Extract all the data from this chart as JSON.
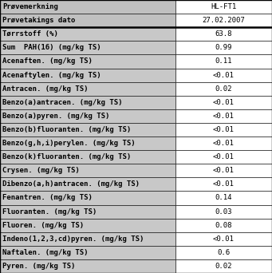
{
  "header_labels": [
    "Prøvemerkning",
    "Prøvetakings dato"
  ],
  "header_values": [
    "HL-FT1",
    "27.02.2007"
  ],
  "rows": [
    [
      "Tørrstoff (%)",
      "63.8"
    ],
    [
      "Sum  PAH(16) (mg/kg TS)",
      "0.99"
    ],
    [
      "Acenaften. (mg/kg TS)",
      "0.11"
    ],
    [
      "Acenaftylen. (mg/kg TS)",
      "<0.01"
    ],
    [
      "Antracen. (mg/kg TS)",
      "0.02"
    ],
    [
      "Benzo(a)antracen. (mg/kg TS)",
      "<0.01"
    ],
    [
      "Benzo(a)pyren. (mg/kg TS)",
      "<0.01"
    ],
    [
      "Benzo(b)fluoranten. (mg/kg TS)",
      "<0.01"
    ],
    [
      "Benzo(g,h,i)perylen. (mg/kg TS)",
      "<0.01"
    ],
    [
      "Benzo(k)fluoranten. (mg/kg TS)",
      "<0.01"
    ],
    [
      "Crysen. (mg/kg TS)",
      "<0.01"
    ],
    [
      "Dibenzo(a,h)antracen. (mg/kg TS)",
      "<0.01"
    ],
    [
      "Fenantren. (mg/kg TS)",
      "0.14"
    ],
    [
      "Fluoranten. (mg/kg TS)",
      "0.03"
    ],
    [
      "Fluoren. (mg/kg TS)",
      "0.08"
    ],
    [
      "Indeno(1,2,3,cd)pyren. (mg/kg TS)",
      "<0.01"
    ],
    [
      "Naftalen. (mg/kg TS)",
      "0.6"
    ],
    [
      "Pyren. (mg/kg TS)",
      "0.02"
    ]
  ],
  "header_bg": "#c0c0c0",
  "row_bg": "#c8c8c8",
  "value_bg": "#ffffff",
  "border_color": "#000000",
  "text_color": "#000000",
  "font_size": 6.5,
  "col_split": 0.645,
  "fig_width": 3.41,
  "fig_height": 3.42,
  "dpi": 100
}
